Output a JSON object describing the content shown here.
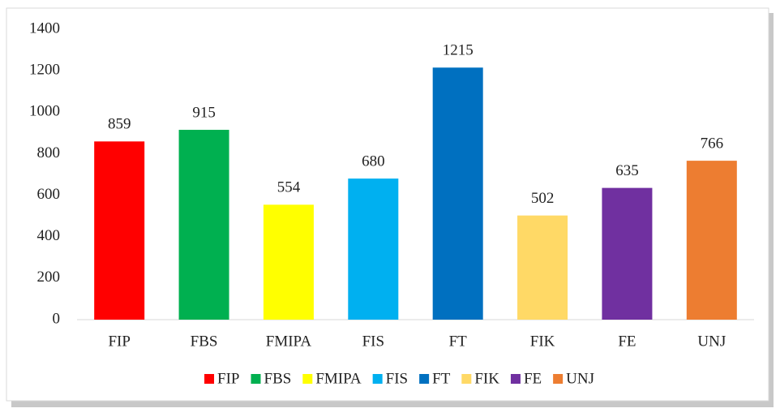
{
  "chart_data": {
    "type": "bar",
    "categories": [
      "FIP",
      "FBS",
      "FMIPA",
      "FIS",
      "FT",
      "FIK",
      "FE",
      "UNJ"
    ],
    "values": [
      859,
      915,
      554,
      680,
      1215,
      502,
      635,
      766
    ],
    "colors": [
      "#ff0000",
      "#00b050",
      "#ffff00",
      "#00b0f0",
      "#0070c0",
      "#ffd966",
      "#7030a0",
      "#ed7d31"
    ],
    "ylim": [
      0,
      1400
    ],
    "yticks": [
      0,
      200,
      400,
      600,
      800,
      1000,
      1200,
      1400
    ],
    "grid": false,
    "legend": "bottom"
  }
}
